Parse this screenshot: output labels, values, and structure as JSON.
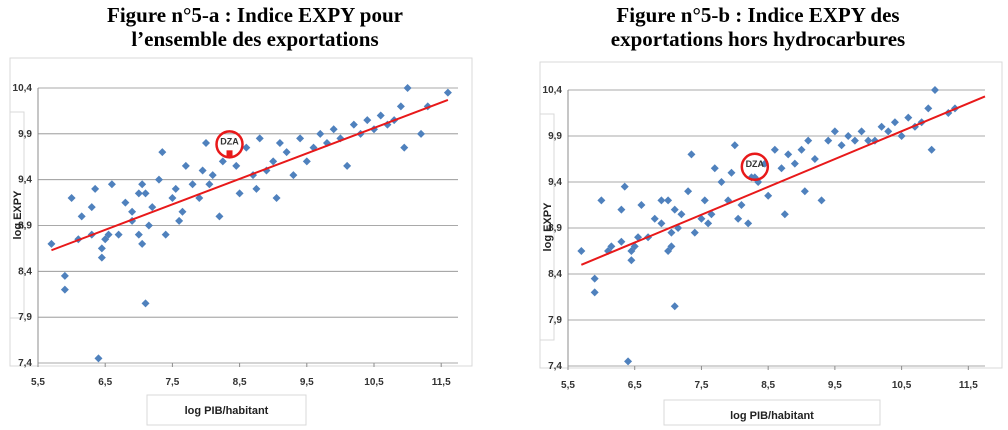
{
  "chart_data": [
    {
      "type": "scatter",
      "title": [
        "Figure n°5-a : Indice EXPY pour",
        "l’ensemble des exportations"
      ],
      "x_label": "log PIB/habitant",
      "y_label": "log EXPY",
      "xlim": [
        5.5,
        11.75
      ],
      "ylim": [
        7.4,
        10.4
      ],
      "xticks": [
        {
          "value": 5.5,
          "label": "5,5"
        },
        {
          "value": 6.5,
          "label": "6,5"
        },
        {
          "value": 7.5,
          "label": "7,5"
        },
        {
          "value": 8.5,
          "label": "8,5"
        },
        {
          "value": 9.5,
          "label": "9,5"
        },
        {
          "value": 10.5,
          "label": "10,5"
        },
        {
          "value": 11.5,
          "label": "11,5"
        }
      ],
      "yticks": [
        {
          "value": 7.4,
          "label": "7,4"
        },
        {
          "value": 7.9,
          "label": "7,9"
        },
        {
          "value": 8.4,
          "label": "8,4"
        },
        {
          "value": 8.9,
          "label": "8,9"
        },
        {
          "value": 9.4,
          "label": "9,4"
        },
        {
          "value": 9.9,
          "label": "9,9"
        },
        {
          "value": 10.4,
          "label": "10,4"
        }
      ],
      "grid": true,
      "series": [
        {
          "color": "#4f81bd",
          "x": [
            5.7,
            5.9,
            5.9,
            6.0,
            6.1,
            6.15,
            6.3,
            6.3,
            6.35,
            6.4,
            6.45,
            6.45,
            6.5,
            6.55,
            6.6,
            6.7,
            6.8,
            6.9,
            6.9,
            7.0,
            7.0,
            7.05,
            7.05,
            7.1,
            7.1,
            7.15,
            7.2,
            7.3,
            7.35,
            7.4,
            7.5,
            7.55,
            7.6,
            7.65,
            7.7,
            7.8,
            7.9,
            7.95,
            8.0,
            8.05,
            8.1,
            8.2,
            8.25,
            8.45,
            8.5,
            8.6,
            8.7,
            8.75,
            8.8,
            8.9,
            9.0,
            9.05,
            9.1,
            9.2,
            9.3,
            9.4,
            9.5,
            9.6,
            9.7,
            9.8,
            9.9,
            10.0,
            10.1,
            10.2,
            10.3,
            10.4,
            10.5,
            10.6,
            10.7,
            10.8,
            10.9,
            10.95,
            11.0,
            11.2,
            11.3,
            11.6
          ],
          "values": [
            8.7,
            8.35,
            8.2,
            9.2,
            8.75,
            9.0,
            8.8,
            9.1,
            9.3,
            7.45,
            8.55,
            8.65,
            8.75,
            8.8,
            9.35,
            8.8,
            9.15,
            9.05,
            8.95,
            8.8,
            9.25,
            9.35,
            8.7,
            9.25,
            8.05,
            8.9,
            9.1,
            9.4,
            9.7,
            8.8,
            9.2,
            9.3,
            8.95,
            9.05,
            9.55,
            9.35,
            9.2,
            9.5,
            9.8,
            9.35,
            9.45,
            9.0,
            9.6,
            9.55,
            9.25,
            9.75,
            9.45,
            9.3,
            9.85,
            9.5,
            9.6,
            9.2,
            9.8,
            9.7,
            9.45,
            9.85,
            9.6,
            9.75,
            9.9,
            9.8,
            9.95,
            9.85,
            9.55,
            10.0,
            9.9,
            10.05,
            9.95,
            10.1,
            10.0,
            10.05,
            10.2,
            9.75,
            10.4,
            9.9,
            10.2,
            10.35
          ]
        },
        {
          "type": "line",
          "color": "#e8191a",
          "x": [
            5.7,
            11.6
          ],
          "values": [
            8.63,
            10.27
          ]
        }
      ],
      "annotation": {
        "text": "DZA",
        "x": 8.35,
        "y": 9.72,
        "color": "#e8191a"
      }
    },
    {
      "type": "scatter",
      "title": [
        "Figure n°5-b : Indice EXPY des",
        "exportations hors hydrocarbures"
      ],
      "x_label": "log PIB/habitant",
      "y_label": "log EXPY",
      "xlim": [
        5.5,
        11.75
      ],
      "ylim": [
        7.4,
        10.4
      ],
      "xticks": [
        {
          "value": 5.5,
          "label": "5,5"
        },
        {
          "value": 6.5,
          "label": "6,5"
        },
        {
          "value": 7.5,
          "label": "7,5"
        },
        {
          "value": 8.5,
          "label": "8,5"
        },
        {
          "value": 9.5,
          "label": "9,5"
        },
        {
          "value": 10.5,
          "label": "10,5"
        },
        {
          "value": 11.5,
          "label": "11,5"
        }
      ],
      "yticks": [
        {
          "value": 7.4,
          "label": "7,4"
        },
        {
          "value": 7.9,
          "label": "7,9"
        },
        {
          "value": 8.4,
          "label": "8,4"
        },
        {
          "value": 8.9,
          "label": "8,9"
        },
        {
          "value": 9.4,
          "label": "9,4"
        },
        {
          "value": 9.9,
          "label": "9,9"
        },
        {
          "value": 10.4,
          "label": "10,4"
        }
      ],
      "grid": true,
      "series": [
        {
          "color": "#4f81bd",
          "x": [
            5.7,
            5.9,
            5.9,
            6.0,
            6.1,
            6.15,
            6.3,
            6.3,
            6.35,
            6.4,
            6.45,
            6.45,
            6.5,
            6.55,
            6.6,
            6.7,
            6.8,
            6.9,
            6.9,
            7.0,
            7.0,
            7.05,
            7.05,
            7.1,
            7.1,
            7.15,
            7.2,
            7.3,
            7.35,
            7.4,
            7.5,
            7.55,
            7.6,
            7.65,
            7.7,
            7.8,
            7.9,
            7.95,
            8.0,
            8.05,
            8.1,
            8.2,
            8.25,
            8.3,
            8.35,
            8.45,
            8.5,
            8.6,
            8.7,
            8.75,
            8.8,
            8.9,
            9.0,
            9.05,
            9.1,
            9.2,
            9.3,
            9.4,
            9.5,
            9.6,
            9.7,
            9.8,
            9.9,
            10.0,
            10.1,
            10.2,
            10.3,
            10.4,
            10.5,
            10.6,
            10.7,
            10.8,
            10.9,
            10.95,
            11.0,
            11.2,
            11.3
          ],
          "values": [
            8.65,
            8.35,
            8.2,
            9.2,
            8.65,
            8.7,
            8.75,
            9.1,
            9.35,
            7.45,
            8.55,
            8.65,
            8.7,
            8.8,
            9.15,
            8.8,
            9.0,
            9.2,
            8.95,
            8.65,
            9.2,
            8.85,
            8.7,
            9.1,
            8.05,
            8.9,
            9.05,
            9.3,
            9.7,
            8.85,
            9.0,
            9.2,
            8.95,
            9.05,
            9.55,
            9.4,
            9.2,
            9.5,
            9.8,
            9.0,
            9.15,
            8.95,
            9.45,
            9.45,
            9.4,
            9.6,
            9.25,
            9.75,
            9.55,
            9.05,
            9.7,
            9.6,
            9.75,
            9.3,
            9.85,
            9.65,
            9.2,
            9.85,
            9.95,
            9.8,
            9.9,
            9.85,
            9.95,
            9.85,
            9.85,
            10.0,
            9.95,
            10.05,
            9.9,
            10.1,
            10.0,
            10.05,
            10.2,
            9.75,
            10.4,
            10.15,
            10.2
          ]
        },
        {
          "type": "line",
          "color": "#e8191a",
          "x": [
            5.7,
            11.75
          ],
          "values": [
            8.5,
            10.33
          ]
        }
      ],
      "annotation": {
        "text": "DZA",
        "x": 8.3,
        "y": 9.5,
        "color": "#e8191a"
      }
    }
  ]
}
